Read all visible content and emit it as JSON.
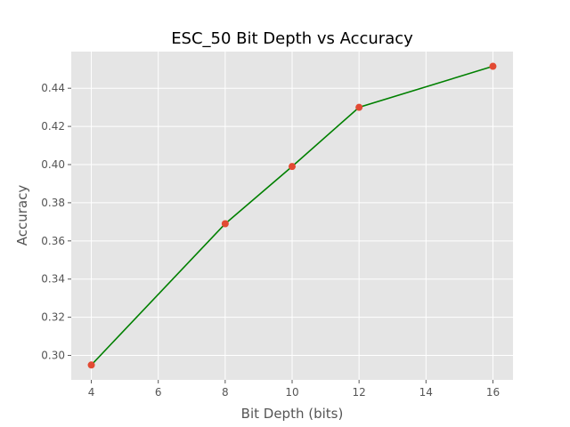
{
  "chart_data": {
    "type": "line",
    "title": "ESC_50 Bit Depth vs Accuracy",
    "xlabel": "Bit Depth (bits)",
    "ylabel": "Accuracy",
    "x": [
      4,
      8,
      10,
      12,
      16
    ],
    "series": [
      {
        "values": [
          0.295,
          0.369,
          0.399,
          0.43,
          0.4515
        ]
      }
    ],
    "xlim": [
      3.4,
      16.6
    ],
    "ylim": [
      0.2872,
      0.4592
    ],
    "xticks": [
      4,
      6,
      8,
      10,
      12,
      14,
      16
    ],
    "xtick_labels": [
      "4",
      "6",
      "8",
      "10",
      "12",
      "14",
      "16"
    ],
    "yticks": [
      0.3,
      0.32,
      0.34,
      0.36,
      0.38,
      0.4,
      0.42,
      0.44
    ],
    "ytick_labels": [
      "0.30",
      "0.32",
      "0.34",
      "0.36",
      "0.38",
      "0.40",
      "0.42",
      "0.44"
    ],
    "grid": true,
    "colors": {
      "line": "#008000",
      "marker": "#e24a33",
      "plot_background": "#e5e5e5",
      "grid": "#ffffff"
    }
  }
}
